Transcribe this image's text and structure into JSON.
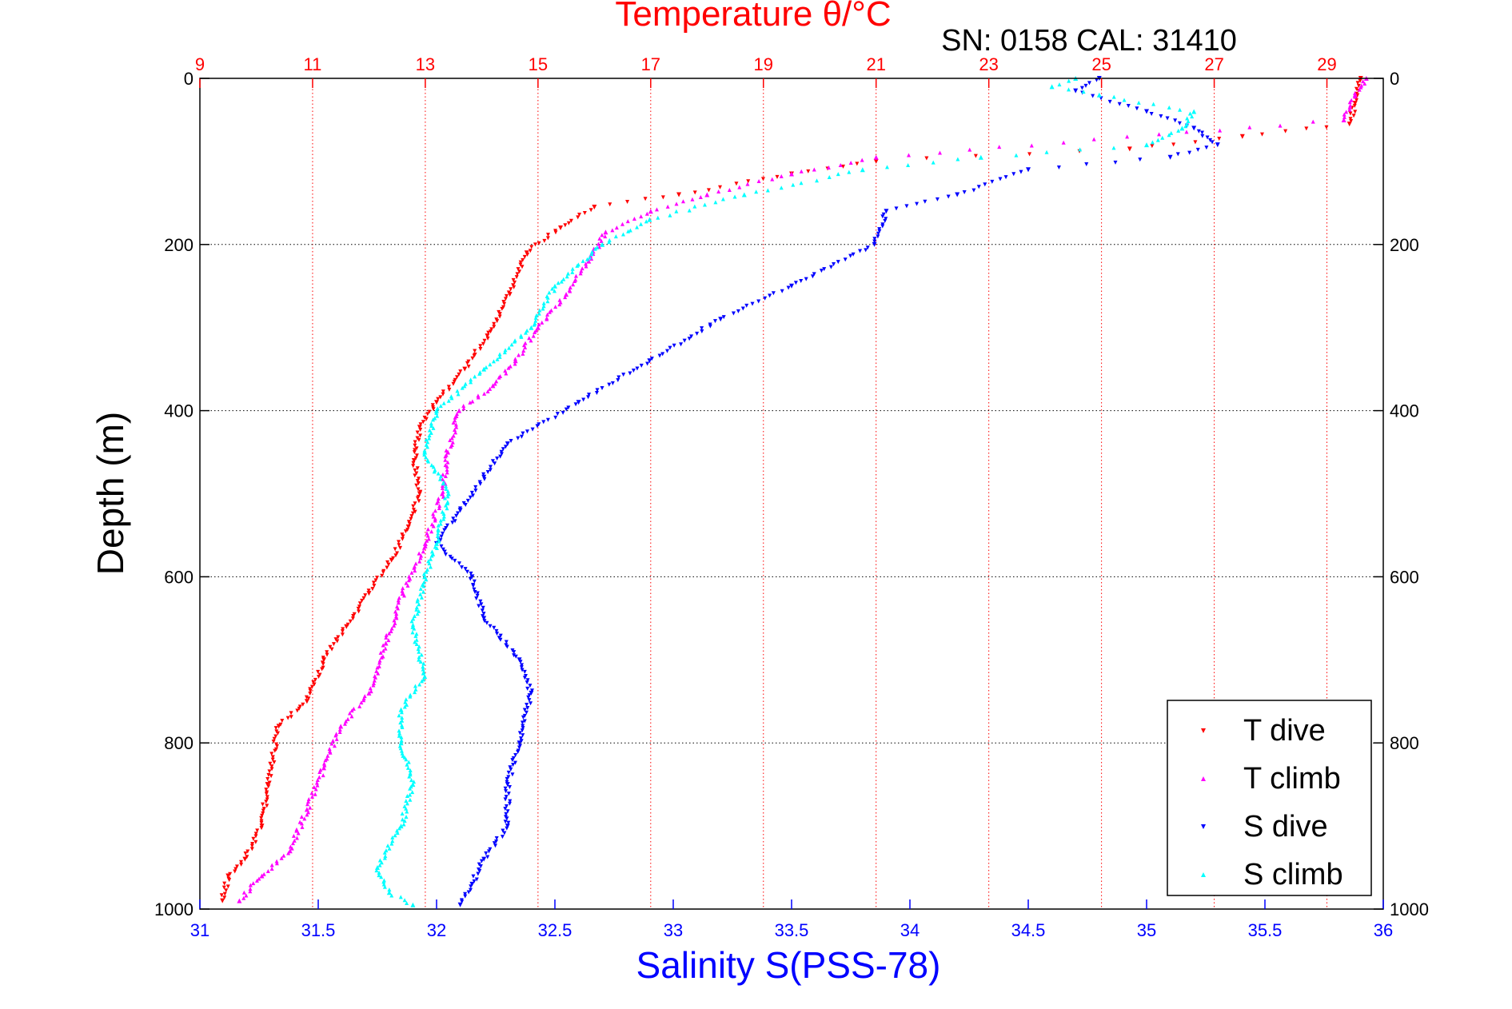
{
  "chart_data": {
    "type": "scatter",
    "title": "Temperature θ/°C",
    "subtitle": "SN: 0158  CAL: 31410",
    "ylabel": "Depth (m)",
    "xlabel": "Salinity S(PSS-78)",
    "x_top_label": "Temperature θ/°C",
    "ylim": [
      0,
      1000
    ],
    "y_reversed": true,
    "temperature_axis": {
      "range": [
        9,
        30
      ],
      "ticks": [
        9,
        11,
        13,
        15,
        17,
        19,
        21,
        23,
        25,
        27,
        29
      ],
      "tick_labels": [
        "9",
        "11",
        "13",
        "15",
        "17",
        "19",
        "21",
        "23",
        "25",
        "27",
        "29"
      ],
      "color": "#ff0000"
    },
    "salinity_axis": {
      "range": [
        31,
        36
      ],
      "ticks": [
        31,
        31.5,
        32,
        32.5,
        33,
        33.5,
        34,
        34.5,
        35,
        35.5,
        36
      ],
      "tick_labels": [
        "31",
        "31.5",
        "32",
        "32.5",
        "33",
        "33.5",
        "34",
        "34.5",
        "35",
        "35.5",
        "36"
      ],
      "color": "#0000ff"
    },
    "depth_ticks": [
      0,
      200,
      400,
      600,
      800,
      1000
    ],
    "depth_tick_labels": [
      "0",
      "200",
      "400",
      "600",
      "800",
      "1000"
    ],
    "grid": true,
    "legend_position": "bottom-right",
    "series": [
      {
        "name": "T dive",
        "axis": "temperature",
        "color": "#ff0000",
        "marker": "triangle-down",
        "points": [
          [
            29.6,
            0
          ],
          [
            29.5,
            30
          ],
          [
            29.4,
            55
          ],
          [
            27.5,
            70
          ],
          [
            25.5,
            85
          ],
          [
            21,
            100
          ],
          [
            19.5,
            115
          ],
          [
            17.5,
            140
          ],
          [
            16,
            155
          ],
          [
            15.4,
            180
          ],
          [
            14.8,
            210
          ],
          [
            14.5,
            260
          ],
          [
            14.1,
            310
          ],
          [
            13.7,
            350
          ],
          [
            13.2,
            390
          ],
          [
            12.9,
            420
          ],
          [
            12.8,
            460
          ],
          [
            12.9,
            500
          ],
          [
            12.7,
            540
          ],
          [
            12.4,
            580
          ],
          [
            12.0,
            620
          ],
          [
            11.6,
            660
          ],
          [
            11.2,
            700
          ],
          [
            10.9,
            750
          ],
          [
            10.4,
            780
          ],
          [
            10.2,
            850
          ],
          [
            10.1,
            900
          ],
          [
            9.8,
            940
          ],
          [
            9.5,
            960
          ],
          [
            9.4,
            990
          ]
        ]
      },
      {
        "name": "T climb",
        "axis": "temperature",
        "color": "#ff00ff",
        "marker": "triangle-up",
        "points": [
          [
            29.7,
            0
          ],
          [
            29.5,
            20
          ],
          [
            29.3,
            50
          ],
          [
            21,
            95
          ],
          [
            19.5,
            115
          ],
          [
            18,
            140
          ],
          [
            17,
            160
          ],
          [
            16.2,
            185
          ],
          [
            15.9,
            220
          ],
          [
            15.5,
            260
          ],
          [
            15.0,
            300
          ],
          [
            14.6,
            340
          ],
          [
            14.2,
            370
          ],
          [
            13.6,
            400
          ],
          [
            13.4,
            450
          ],
          [
            13.3,
            500
          ],
          [
            13.0,
            560
          ],
          [
            12.6,
            620
          ],
          [
            12.3,
            680
          ],
          [
            12.0,
            740
          ],
          [
            11.5,
            780
          ],
          [
            11.2,
            830
          ],
          [
            10.9,
            880
          ],
          [
            10.6,
            930
          ],
          [
            10.1,
            960
          ],
          [
            9.7,
            990
          ]
        ]
      },
      {
        "name": "S dive",
        "axis": "salinity",
        "color": "#0000ff",
        "marker": "triangle-down",
        "points": [
          [
            34.8,
            0
          ],
          [
            34.7,
            15
          ],
          [
            35.0,
            40
          ],
          [
            35.2,
            60
          ],
          [
            35.3,
            80
          ],
          [
            35.1,
            95
          ],
          [
            34.5,
            110
          ],
          [
            34.2,
            140
          ],
          [
            33.9,
            160
          ],
          [
            33.85,
            200
          ],
          [
            33.5,
            250
          ],
          [
            33.2,
            290
          ],
          [
            32.9,
            340
          ],
          [
            32.6,
            390
          ],
          [
            32.3,
            440
          ],
          [
            32.2,
            480
          ],
          [
            32.1,
            520
          ],
          [
            32.0,
            560
          ],
          [
            32.15,
            600
          ],
          [
            32.2,
            650
          ],
          [
            32.35,
            700
          ],
          [
            32.4,
            740
          ],
          [
            32.35,
            800
          ],
          [
            32.3,
            850
          ],
          [
            32.3,
            900
          ],
          [
            32.2,
            940
          ],
          [
            32.15,
            970
          ],
          [
            32.1,
            995
          ]
        ]
      },
      {
        "name": "S climb",
        "axis": "salinity",
        "color": "#00ffff",
        "marker": "triangle-up",
        "points": [
          [
            34.7,
            0
          ],
          [
            34.6,
            10
          ],
          [
            34.8,
            20
          ],
          [
            35.2,
            40
          ],
          [
            35.15,
            60
          ],
          [
            35.0,
            80
          ],
          [
            34.3,
            95
          ],
          [
            33.8,
            110
          ],
          [
            33.3,
            140
          ],
          [
            32.9,
            170
          ],
          [
            32.7,
            200
          ],
          [
            32.5,
            250
          ],
          [
            32.4,
            300
          ],
          [
            32.2,
            350
          ],
          [
            32.0,
            400
          ],
          [
            31.95,
            450
          ],
          [
            32.05,
            500
          ],
          [
            32.0,
            560
          ],
          [
            31.95,
            600
          ],
          [
            31.9,
            660
          ],
          [
            31.95,
            720
          ],
          [
            31.85,
            760
          ],
          [
            31.85,
            800
          ],
          [
            31.9,
            850
          ],
          [
            31.85,
            900
          ],
          [
            31.75,
            950
          ],
          [
            31.8,
            980
          ],
          [
            31.9,
            995
          ]
        ]
      }
    ]
  }
}
